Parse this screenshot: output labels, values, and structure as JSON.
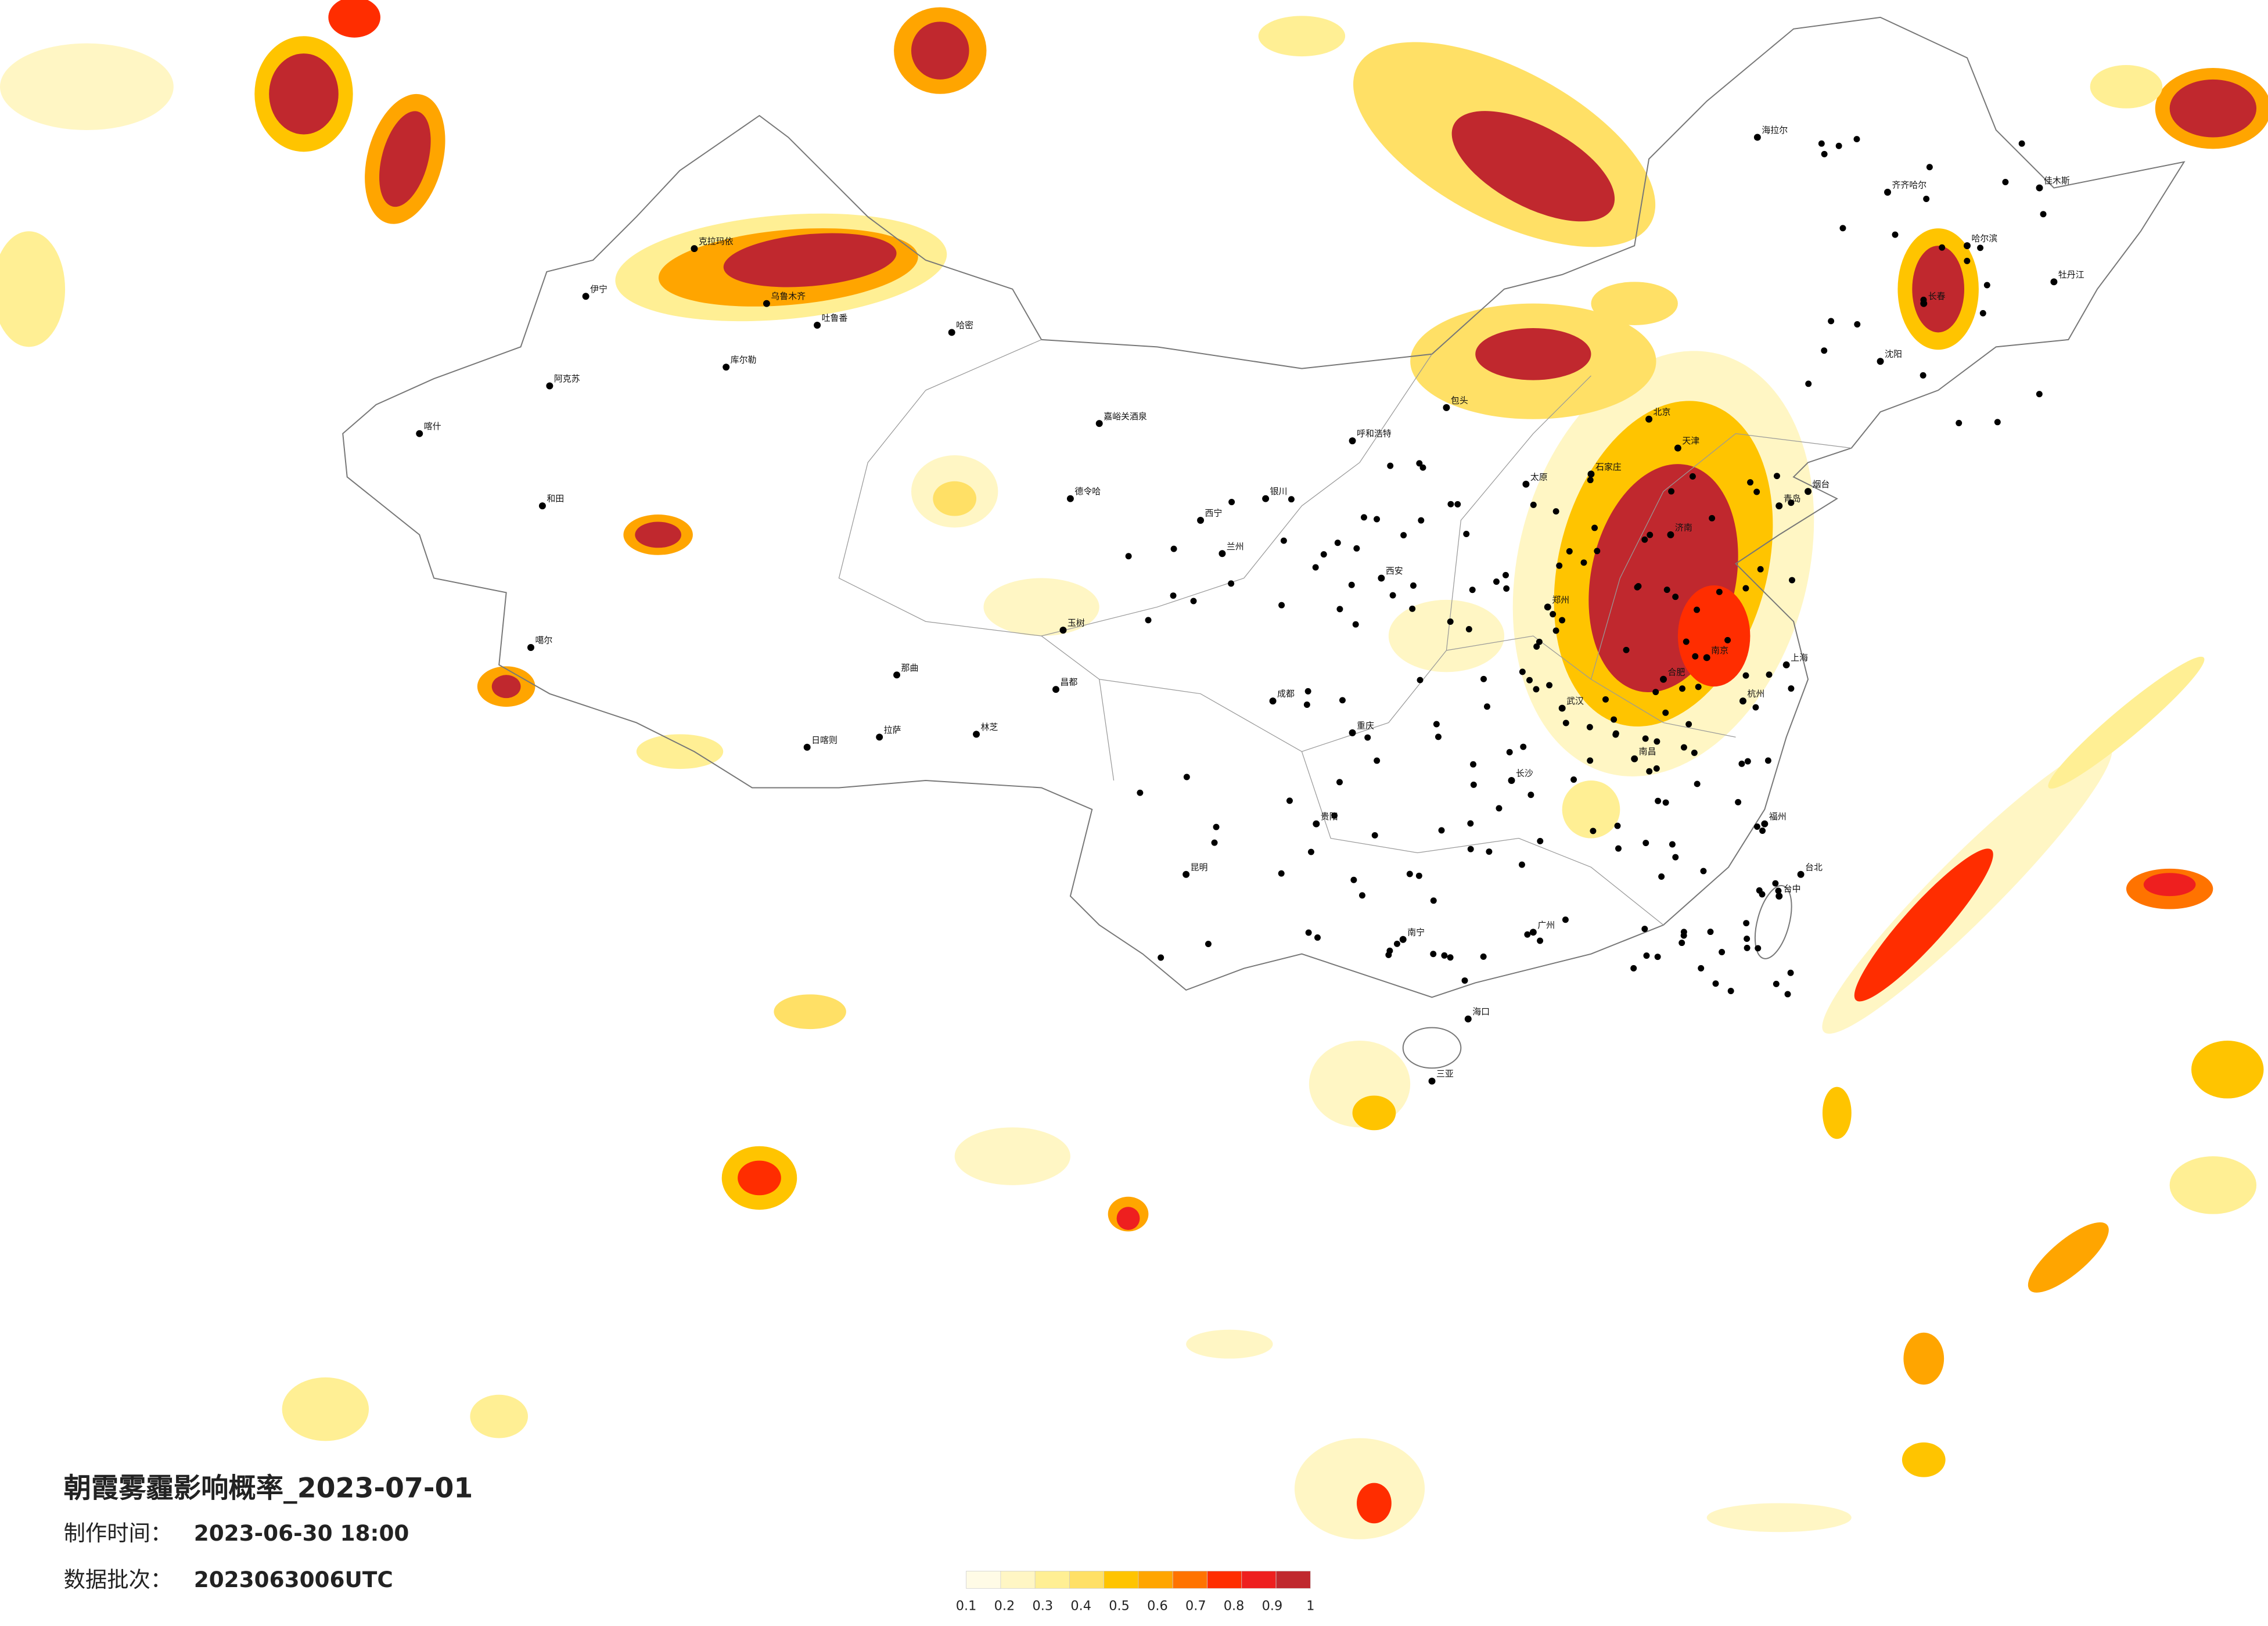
{
  "title": "朝霞雾霾影响概率_2023-07-01",
  "info": [
    {
      "label": "制作时间：",
      "value": "2023-06-30 18:00"
    },
    {
      "label": "数据批次：",
      "value": "2023063006UTC"
    }
  ],
  "colorbar": {
    "ticks": [
      0.1,
      0.2,
      0.3,
      0.4,
      0.5,
      0.6,
      0.7,
      0.8,
      0.9,
      1
    ],
    "colors": [
      "#fffbe6",
      "#fff6c4",
      "#ffef94",
      "#ffe066",
      "#ffc400",
      "#ffa500",
      "#ff7300",
      "#ff2d00",
      "#ee1f1f",
      "#c0282e"
    ]
  },
  "cities": [
    {
      "name": "克拉玛依"
    },
    {
      "name": "乌鲁木齐"
    },
    {
      "name": "伊宁"
    },
    {
      "name": "阿克苏"
    },
    {
      "name": "喀什"
    },
    {
      "name": "和田"
    },
    {
      "name": "哈密"
    },
    {
      "name": "库尔勒"
    },
    {
      "name": "吐鲁番"
    },
    {
      "name": "噶尔"
    },
    {
      "name": "日喀则"
    },
    {
      "name": "拉萨"
    },
    {
      "name": "那曲"
    },
    {
      "name": "林芝"
    },
    {
      "name": "昌都"
    },
    {
      "name": "玉树"
    },
    {
      "name": "嘉峪关酒泉"
    },
    {
      "name": "德令哈"
    },
    {
      "name": "西宁"
    },
    {
      "name": "兰州"
    },
    {
      "name": "银川"
    },
    {
      "name": "呼和浩特"
    },
    {
      "name": "包头"
    },
    {
      "name": "北京"
    },
    {
      "name": "天津"
    },
    {
      "name": "石家庄"
    },
    {
      "name": "太原"
    },
    {
      "name": "济南"
    },
    {
      "name": "郑州"
    },
    {
      "name": "西安"
    },
    {
      "name": "成都"
    },
    {
      "name": "重庆"
    },
    {
      "name": "贵阳"
    },
    {
      "name": "昆明"
    },
    {
      "name": "南宁"
    },
    {
      "name": "广州"
    },
    {
      "name": "长沙"
    },
    {
      "name": "武汉"
    },
    {
      "name": "南昌"
    },
    {
      "name": "杭州"
    },
    {
      "name": "上海"
    },
    {
      "name": "南京"
    },
    {
      "name": "合肥"
    },
    {
      "name": "福州"
    },
    {
      "name": "台北"
    },
    {
      "name": "台中"
    },
    {
      "name": "海口"
    },
    {
      "name": "三亚"
    },
    {
      "name": "哈尔滨"
    },
    {
      "name": "长春"
    },
    {
      "name": "沈阳"
    },
    {
      "name": "海拉尔"
    },
    {
      "name": "齐齐哈尔"
    },
    {
      "name": "佳木斯"
    },
    {
      "name": "牡丹江"
    },
    {
      "name": "青岛"
    },
    {
      "name": "烟台"
    }
  ]
}
